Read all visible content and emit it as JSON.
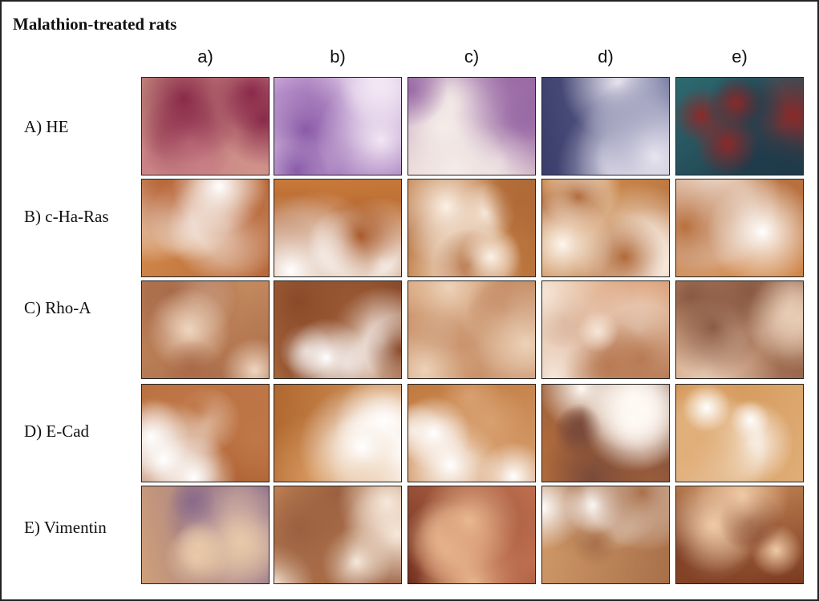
{
  "title": "Malathion-treated rats",
  "columns": [
    "a)",
    "b)",
    "c)",
    "d)",
    "e)"
  ],
  "rows": [
    {
      "label": "A) HE",
      "palettes": [
        [
          "#d9b68f",
          "#c97f86",
          "#8a2a4a"
        ],
        [
          "#c9a6d6",
          "#8a5aa8",
          "#f2e6f4"
        ],
        [
          "#ecdcd8",
          "#9a6aa6",
          "#f5ece8"
        ],
        [
          "#3a3d6a",
          "#6a6e9a",
          "#e8e4ef"
        ],
        [
          "#2e6a70",
          "#1f3a4a",
          "#8a2a2a"
        ]
      ]
    },
    {
      "label": "B) c-Ha-Ras",
      "palettes": [
        [
          "#d38a4a",
          "#b8683a",
          "#ffffff"
        ],
        [
          "#c97a3a",
          "#a85a2a",
          "#ffffff"
        ],
        [
          "#d08a48",
          "#b06a38",
          "#fbf1e6"
        ],
        [
          "#d59452",
          "#b06a3a",
          "#fdf6ee"
        ],
        [
          "#d99050",
          "#b8703e",
          "#ffffff"
        ]
      ]
    },
    {
      "label": "C) Rho-A",
      "palettes": [
        [
          "#cf9668",
          "#a86a48",
          "#efd6c0"
        ],
        [
          "#c98650",
          "#8a4a2a",
          "#ffffff"
        ],
        [
          "#d8a072",
          "#b8784e",
          "#edd2b8"
        ],
        [
          "#dca078",
          "#b87a54",
          "#f6e6d8"
        ],
        [
          "#c8906a",
          "#8a5a44",
          "#e8ccb4"
        ]
      ]
    },
    {
      "label": "D) E-Cad",
      "palettes": [
        [
          "#a8582a",
          "#c07848",
          "#ffffff"
        ],
        [
          "#b06830",
          "#d89a60",
          "#ffffff"
        ],
        [
          "#c07a40",
          "#d8a070",
          "#ffffff"
        ],
        [
          "#b8703c",
          "#7a4a3a",
          "#fffaf4"
        ],
        [
          "#d09050",
          "#e0ae78",
          "#ffffff"
        ]
      ]
    },
    {
      "label": "E) Vimentin",
      "palettes": [
        [
          "#cfa07a",
          "#8a6a8a",
          "#e8c8a8"
        ],
        [
          "#c88858",
          "#9a6040",
          "#f6e8da"
        ],
        [
          "#6a2a1a",
          "#c07050",
          "#e8b890"
        ],
        [
          "#d09a68",
          "#a8704a",
          "#ffffff"
        ],
        [
          "#c88a58",
          "#7a3a20",
          "#efcaa6"
        ]
      ]
    }
  ]
}
